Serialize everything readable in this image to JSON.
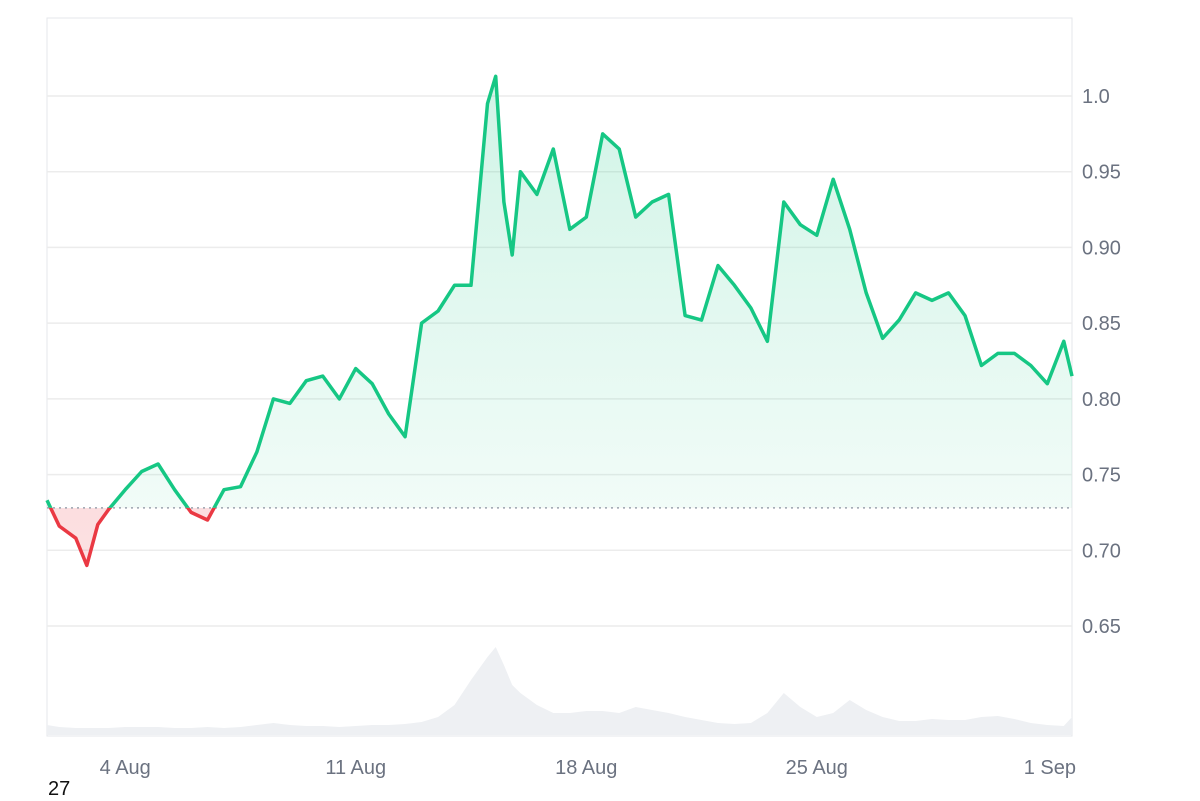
{
  "chart_data": {
    "type": "area",
    "title": "",
    "xlabel": "",
    "ylabel": "",
    "ylim": [
      0.58,
      1.05
    ],
    "y_ticks": [
      "0.65",
      "0.70",
      "0.75",
      "0.80",
      "0.85",
      "0.90",
      "0.95",
      "1.0"
    ],
    "y_tick_values": [
      0.65,
      0.7,
      0.75,
      0.8,
      0.85,
      0.9,
      0.95,
      1.0
    ],
    "x_ticks": [
      "4 Aug",
      "11 Aug",
      "18 Aug",
      "25 Aug",
      "1 Sep"
    ],
    "x_tick_values": [
      "2024-08-04",
      "2024-08-11",
      "2024-08-18",
      "2024-08-25",
      "2024-09-01"
    ],
    "x_range": [
      "2024-08-01 15:00",
      "2024-09-01 18:00"
    ],
    "grid": true,
    "axis_side_y": "right",
    "baseline": 0.728,
    "colors": {
      "above": "#16c784",
      "below": "#ea3943",
      "grid": "#ececec",
      "volume": "#eef0f3",
      "axis_text": "#6b7280"
    },
    "series": [
      {
        "x": [
          "2024-08-01 15:00",
          "2024-08-02 00:00",
          "2024-08-02 12:00",
          "2024-08-02 20:00",
          "2024-08-03 04:00",
          "2024-08-03 12:00",
          "2024-08-04 00:00",
          "2024-08-04 12:00",
          "2024-08-05 00:00",
          "2024-08-05 12:00",
          "2024-08-06 00:00",
          "2024-08-06 12:00",
          "2024-08-07 00:00",
          "2024-08-07 12:00",
          "2024-08-08 00:00",
          "2024-08-08 12:00",
          "2024-08-09 00:00",
          "2024-08-09 12:00",
          "2024-08-10 00:00",
          "2024-08-10 12:00",
          "2024-08-11 00:00",
          "2024-08-11 12:00",
          "2024-08-12 00:00",
          "2024-08-12 12:00",
          "2024-08-13 00:00",
          "2024-08-13 12:00",
          "2024-08-14 00:00",
          "2024-08-14 12:00",
          "2024-08-15 00:00",
          "2024-08-15 06:00",
          "2024-08-15 12:00",
          "2024-08-15 18:00",
          "2024-08-16 00:00",
          "2024-08-16 12:00",
          "2024-08-17 00:00",
          "2024-08-17 12:00",
          "2024-08-18 00:00",
          "2024-08-18 12:00",
          "2024-08-19 00:00",
          "2024-08-19 12:00",
          "2024-08-20 00:00",
          "2024-08-20 12:00",
          "2024-08-21 00:00",
          "2024-08-21 12:00",
          "2024-08-22 00:00",
          "2024-08-22 12:00",
          "2024-08-23 00:00",
          "2024-08-23 12:00",
          "2024-08-24 00:00",
          "2024-08-24 12:00",
          "2024-08-25 00:00",
          "2024-08-25 12:00",
          "2024-08-26 00:00",
          "2024-08-26 12:00",
          "2024-08-27 00:00",
          "2024-08-27 12:00",
          "2024-08-28 00:00",
          "2024-08-28 12:00",
          "2024-08-29 00:00",
          "2024-08-29 12:00",
          "2024-08-30 00:00",
          "2024-08-30 12:00",
          "2024-08-31 00:00",
          "2024-08-31 12:00",
          "2024-09-01 00:00",
          "2024-09-01 12:00",
          "2024-09-01 18:00"
        ],
        "values": [
          0.733,
          0.716,
          0.708,
          0.69,
          0.717,
          0.727,
          0.74,
          0.752,
          0.757,
          0.74,
          0.725,
          0.72,
          0.74,
          0.742,
          0.765,
          0.8,
          0.797,
          0.812,
          0.815,
          0.8,
          0.82,
          0.81,
          0.79,
          0.775,
          0.85,
          0.858,
          0.875,
          0.875,
          0.995,
          1.013,
          0.93,
          0.895,
          0.95,
          0.935,
          0.965,
          0.912,
          0.92,
          0.975,
          0.965,
          0.92,
          0.93,
          0.935,
          0.855,
          0.852,
          0.888,
          0.875,
          0.86,
          0.838,
          0.93,
          0.915,
          0.908,
          0.945,
          0.912,
          0.87,
          0.84,
          0.852,
          0.87,
          0.865,
          0.87,
          0.855,
          0.822,
          0.83,
          0.83,
          0.822,
          0.81,
          0.838,
          0.815
        ]
      }
    ],
    "volume": [
      0.1,
      0.08,
      0.07,
      0.07,
      0.07,
      0.07,
      0.08,
      0.08,
      0.08,
      0.07,
      0.07,
      0.08,
      0.07,
      0.08,
      0.1,
      0.12,
      0.1,
      0.09,
      0.09,
      0.08,
      0.09,
      0.1,
      0.1,
      0.11,
      0.13,
      0.18,
      0.3,
      0.55,
      0.78,
      0.88,
      0.7,
      0.5,
      0.42,
      0.3,
      0.22,
      0.22,
      0.24,
      0.24,
      0.22,
      0.28,
      0.25,
      0.22,
      0.18,
      0.15,
      0.12,
      0.11,
      0.12,
      0.22,
      0.42,
      0.28,
      0.18,
      0.22,
      0.35,
      0.25,
      0.18,
      0.14,
      0.14,
      0.16,
      0.15,
      0.15,
      0.18,
      0.19,
      0.16,
      0.12,
      0.1,
      0.09,
      0.18
    ]
  },
  "footnote": "27"
}
